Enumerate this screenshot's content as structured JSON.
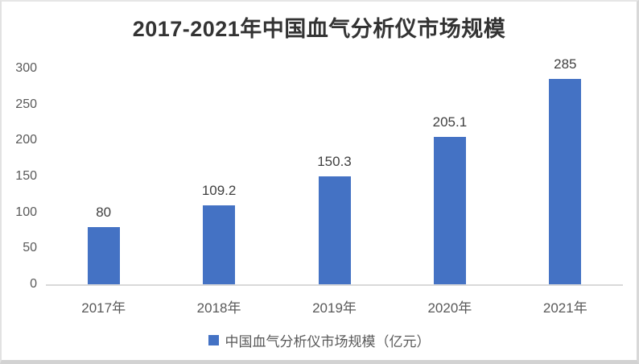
{
  "chart_data": {
    "type": "bar",
    "title": "2017-2021年中国血气分析仪市场规模",
    "categories": [
      "2017年",
      "2018年",
      "2019年",
      "2020年",
      "2021年"
    ],
    "values": [
      80,
      109.2,
      150.3,
      205.1,
      285
    ],
    "value_labels": [
      "80",
      "109.2",
      "150.3",
      "205.1",
      "285"
    ],
    "legend_label": "中国血气分析仪市场规模（亿元）",
    "legend_position": "bottom",
    "bar_color": "#4472C4",
    "axis_line_color": "#d9d9d9",
    "ylim": [
      0,
      300
    ],
    "yticks": [
      0,
      50,
      100,
      150,
      200,
      250,
      300
    ],
    "grid": false,
    "xlabel": "",
    "ylabel": ""
  }
}
